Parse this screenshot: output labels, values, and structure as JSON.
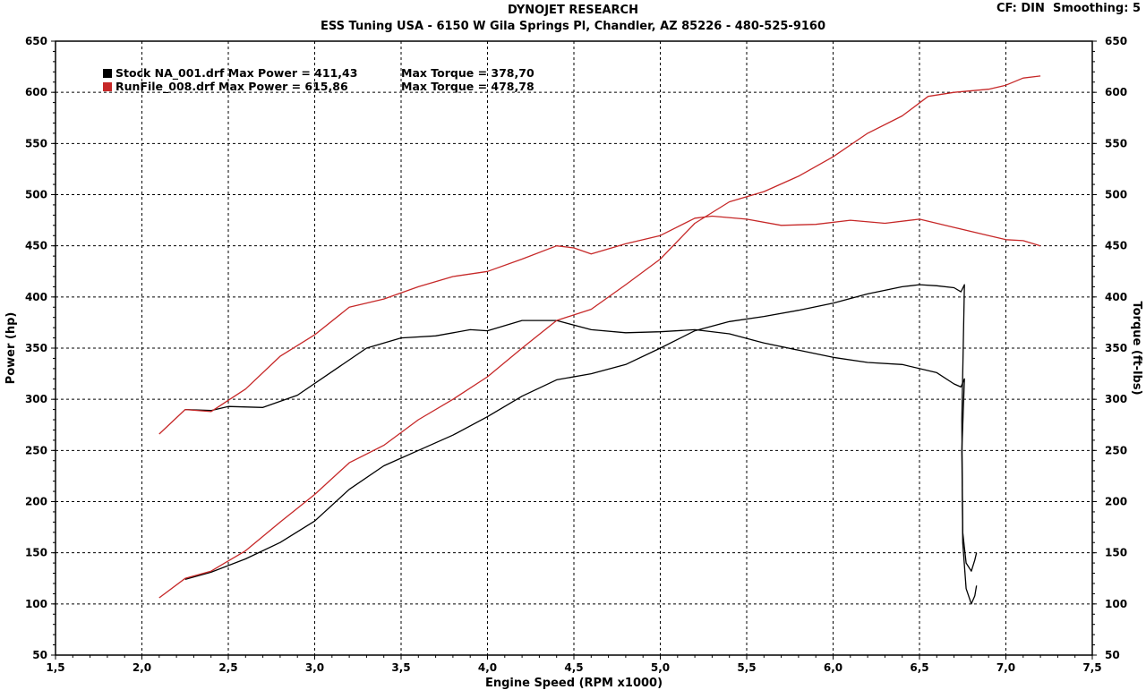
{
  "header": {
    "title": "DYNOJET RESEARCH",
    "subtitle": "ESS Tuning USA - 6150 W Gila Springs Pl, Chandler, AZ 85226 - 480-525-9160",
    "cf_label": "CF: DIN",
    "smoothing_label": "Smoothing: 5"
  },
  "chart_data": {
    "type": "line",
    "xlabel": "Engine Speed (RPM x1000)",
    "ylabel": "Power (hp)",
    "y2label": "Torque (ft-lbs)",
    "xlim": [
      1.5,
      7.5
    ],
    "ylim": [
      50,
      650
    ],
    "y2lim": [
      50,
      650
    ],
    "xticks": [
      "1,5",
      "2,0",
      "2,5",
      "3,0",
      "3,5",
      "4,0",
      "4,5",
      "5,0",
      "5,5",
      "6,0",
      "6,5",
      "7,0",
      "7,5"
    ],
    "yticks": [
      "50",
      "100",
      "150",
      "200",
      "250",
      "300",
      "350",
      "400",
      "450",
      "500",
      "550",
      "600",
      "650"
    ],
    "grid": true,
    "legend_position": "top-left",
    "legend": [
      {
        "label": "Stock NA_001.drf Max Power = 411,43",
        "torque_text": "Max Torque = 378,70",
        "color": "#000000"
      },
      {
        "label": "RunFile_008.drf Max Power = 615,86",
        "torque_text": "Max Torque = 478,78",
        "color": "#c62828"
      }
    ],
    "series": [
      {
        "name": "Stock NA_001.drf",
        "measure": "power",
        "color": "#000000",
        "x": [
          2.25,
          2.4,
          2.6,
          2.8,
          3.0,
          3.2,
          3.4,
          3.6,
          3.8,
          4.0,
          4.2,
          4.4,
          4.6,
          4.8,
          5.0,
          5.2,
          5.4,
          5.6,
          5.8,
          6.0,
          6.2,
          6.4,
          6.5,
          6.6,
          6.7,
          6.74,
          6.76,
          6.745,
          6.75,
          6.77,
          6.8,
          6.82,
          6.83
        ],
        "y": [
          124,
          131,
          144,
          160,
          181,
          212,
          235,
          250,
          265,
          283,
          303,
          319,
          325,
          334,
          350,
          367,
          376,
          381,
          387,
          394,
          403,
          410,
          412,
          411,
          409,
          405,
          412,
          280,
          160,
          115,
          100,
          108,
          118
        ]
      },
      {
        "name": "Stock NA_001.drf",
        "measure": "torque",
        "color": "#000000",
        "x": [
          2.25,
          2.4,
          2.5,
          2.7,
          2.9,
          3.1,
          3.3,
          3.5,
          3.7,
          3.9,
          4.0,
          4.2,
          4.4,
          4.6,
          4.8,
          5.0,
          5.2,
          5.4,
          5.6,
          5.8,
          6.0,
          6.2,
          6.4,
          6.6,
          6.7,
          6.74,
          6.76,
          6.745,
          6.75,
          6.77,
          6.8,
          6.82,
          6.83
        ],
        "y": [
          290,
          289,
          293,
          292,
          304,
          327,
          350,
          360,
          362,
          368,
          367,
          377,
          377,
          368,
          365,
          366,
          368,
          364,
          355,
          348,
          341,
          336,
          334,
          326,
          315,
          312,
          320,
          250,
          170,
          140,
          132,
          143,
          150
        ]
      },
      {
        "name": "RunFile_008.drf",
        "measure": "power",
        "color": "#c62828",
        "x": [
          2.1,
          2.25,
          2.4,
          2.6,
          2.8,
          3.0,
          3.2,
          3.4,
          3.6,
          3.8,
          4.0,
          4.2,
          4.4,
          4.6,
          4.8,
          5.0,
          5.2,
          5.4,
          5.6,
          5.8,
          6.0,
          6.2,
          6.4,
          6.55,
          6.7,
          6.9,
          7.0,
          7.1,
          7.2
        ],
        "y": [
          106,
          125,
          132,
          152,
          180,
          207,
          238,
          255,
          280,
          300,
          322,
          350,
          377,
          388,
          412,
          437,
          472,
          493,
          503,
          518,
          537,
          560,
          577,
          596,
          600,
          603,
          607,
          614,
          616
        ]
      },
      {
        "name": "RunFile_008.drf",
        "measure": "torque",
        "color": "#c62828",
        "x": [
          2.1,
          2.25,
          2.4,
          2.6,
          2.8,
          3.0,
          3.2,
          3.4,
          3.6,
          3.8,
          4.0,
          4.2,
          4.4,
          4.5,
          4.6,
          4.8,
          5.0,
          5.2,
          5.3,
          5.5,
          5.7,
          5.9,
          6.1,
          6.3,
          6.5,
          6.7,
          6.9,
          7.0,
          7.1,
          7.2
        ],
        "y": [
          266,
          290,
          288,
          310,
          342,
          363,
          390,
          398,
          410,
          420,
          425,
          437,
          450,
          448,
          442,
          452,
          460,
          477,
          479,
          476,
          470,
          471,
          475,
          472,
          476,
          468,
          460,
          456,
          455,
          450
        ]
      }
    ]
  }
}
